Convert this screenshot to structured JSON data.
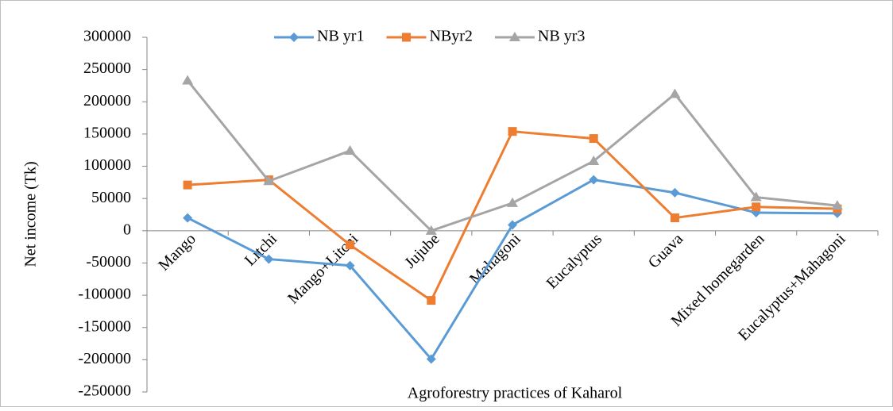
{
  "chart_data": {
    "type": "line",
    "x_label": "Agroforestry practices of Kaharol",
    "y_label": "Net income (Tk)",
    "categories": [
      "Mango",
      "Litchi",
      "Mango+Litchi",
      "Jujube",
      "Mahagoni",
      "Eucalyptus",
      "Guava",
      "Mixed homegarden",
      "Eucalyptus+Mahagoni"
    ],
    "series": [
      {
        "name": "NB yr1",
        "color": "#5b9bd5",
        "marker": "diamond",
        "values": [
          20000,
          -44000,
          -54000,
          -199000,
          9000,
          79000,
          59000,
          28000,
          27000
        ]
      },
      {
        "name": "NByr2",
        "color": "#ed7d31",
        "marker": "square",
        "values": [
          71000,
          79000,
          -22000,
          -108000,
          154000,
          143000,
          20000,
          37000,
          34000
        ]
      },
      {
        "name": "NB yr3",
        "color": "#a5a5a5",
        "marker": "triangle",
        "values": [
          233000,
          77000,
          124000,
          0,
          43000,
          108000,
          212000,
          52000,
          39000
        ]
      }
    ],
    "ylim": [
      -250000,
      300000
    ],
    "yticks": [
      -250000,
      -200000,
      -150000,
      -100000,
      -50000,
      0,
      50000,
      100000,
      150000,
      200000,
      250000,
      300000
    ],
    "grid": false,
    "legend": "top"
  }
}
